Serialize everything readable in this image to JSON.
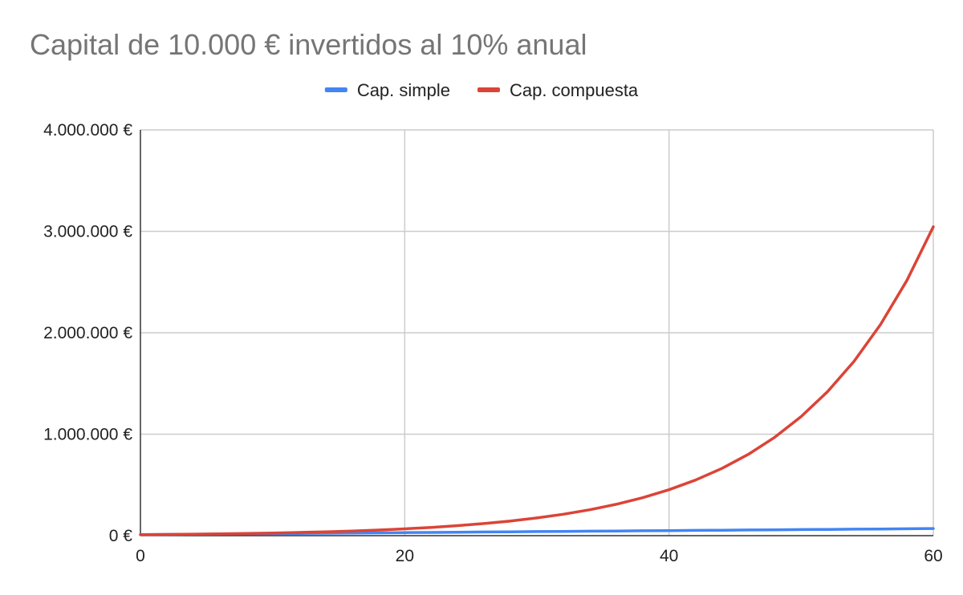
{
  "chart_data": {
    "type": "line",
    "title": "Capital de 10.000 € invertidos al 10% anual",
    "xlabel": "",
    "ylabel": "",
    "xlim": [
      0,
      60
    ],
    "ylim": [
      0,
      4000000
    ],
    "x_ticks": [
      {
        "value": 0,
        "label": "0"
      },
      {
        "value": 20,
        "label": "20"
      },
      {
        "value": 40,
        "label": "40"
      },
      {
        "value": 60,
        "label": "60"
      }
    ],
    "y_ticks": [
      {
        "value": 0,
        "label": "0 €"
      },
      {
        "value": 1000000,
        "label": "1.000.000 €"
      },
      {
        "value": 2000000,
        "label": "2.000.000 €"
      },
      {
        "value": 3000000,
        "label": "3.000.000 €"
      },
      {
        "value": 4000000,
        "label": "4.000.000 €"
      }
    ],
    "grid": true,
    "legend_position": "top",
    "x": [
      0,
      2,
      4,
      6,
      8,
      10,
      12,
      14,
      16,
      18,
      20,
      22,
      24,
      26,
      28,
      30,
      32,
      34,
      36,
      38,
      40,
      42,
      44,
      46,
      48,
      50,
      52,
      54,
      56,
      58,
      60
    ],
    "series": [
      {
        "name": "Cap. simple",
        "color": "#4285f4",
        "values": [
          10000,
          12000,
          14000,
          16000,
          18000,
          20000,
          22000,
          24000,
          26000,
          28000,
          30000,
          32000,
          34000,
          36000,
          38000,
          40000,
          42000,
          44000,
          46000,
          48000,
          50000,
          52000,
          54000,
          56000,
          58000,
          60000,
          62000,
          64000,
          66000,
          68000,
          70000
        ]
      },
      {
        "name": "Cap. compuesta",
        "color": "#db4437",
        "values": [
          10000,
          12100,
          14641,
          17716,
          21436,
          25937,
          31384,
          37975,
          45950,
          55599,
          67275,
          81403,
          98497,
          119182,
          144210,
          174494,
          211138,
          255477,
          309127,
          374043,
          452593,
          547637,
          662641,
          801795,
          970172,
          1173909,
          1420429,
          1718719,
          2079651,
          2516377,
          3044816
        ]
      }
    ]
  }
}
